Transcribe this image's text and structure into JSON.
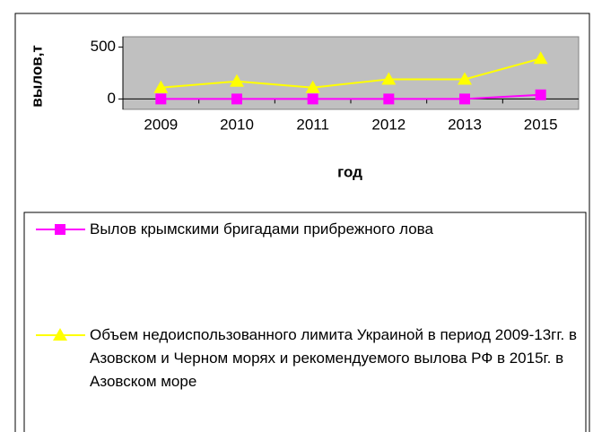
{
  "chart_data": {
    "type": "line",
    "y_label": "вылов,т",
    "x_label": "год",
    "categories": [
      "2009",
      "2010",
      "2011",
      "2012",
      "2013",
      "2015"
    ],
    "series": [
      {
        "name": "Вылов крымскими бригадами прибрежного лова",
        "color": "#ff00ff",
        "marker": "square",
        "values": [
          0,
          0,
          0,
          0,
          0,
          40
        ]
      },
      {
        "name": "Объем недоиспользованного лимита Украиной в период 2009-13гг. в Азовском и Черном морях и рекомендуемого вылова РФ в 2015г. в Азовском море",
        "color": "#ffff00",
        "marker": "triangle",
        "values": [
          110,
          170,
          110,
          190,
          190,
          390
        ]
      }
    ],
    "ylim": [
      -100,
      600
    ],
    "yticks": [
      0,
      500
    ],
    "grid": false,
    "plot_background": "#c0c0c0"
  }
}
